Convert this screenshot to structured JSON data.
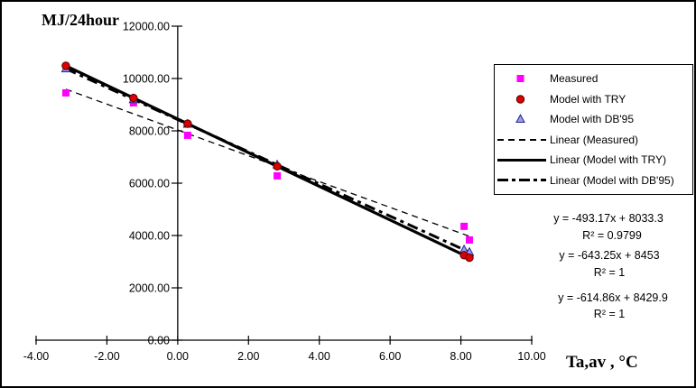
{
  "window": {
    "background": "#ffffff",
    "border_color": "#000000"
  },
  "chart_data": {
    "type": "scatter",
    "x_axis": {
      "label": "Ta,av , °C",
      "min": -4,
      "max": 10,
      "tick_step": 2,
      "tick_values": [
        -4,
        -2,
        0,
        2,
        4,
        6,
        8,
        10
      ],
      "tick_labels": [
        "-4.00",
        "-2.00",
        "0.00",
        "2.00",
        "4.00",
        "6.00",
        "8.00",
        "10.00"
      ]
    },
    "y_axis": {
      "label": "MJ/24hour",
      "min": 0,
      "max": 12000,
      "tick_step": 2000,
      "tick_values": [
        0,
        2000,
        4000,
        6000,
        8000,
        10000,
        12000
      ],
      "tick_labels": [
        "0.00",
        "2000.00",
        "4000.00",
        "6000.00",
        "8000.00",
        "10000.00",
        "12000.00"
      ]
    },
    "grid": "off",
    "legend_position": "right",
    "series": [
      {
        "name": "Measured",
        "marker": "square",
        "fill": "#ff00ff",
        "stroke": "#ff00ff",
        "points": [
          [
            -3.16,
            9450
          ],
          [
            -1.25,
            9070
          ],
          [
            0.28,
            7830
          ],
          [
            2.81,
            6280
          ],
          [
            8.09,
            4350
          ],
          [
            8.24,
            3830
          ]
        ]
      },
      {
        "name": "Model with TRY",
        "marker": "circle",
        "fill": "#dd0000",
        "stroke": "#550000",
        "points": [
          [
            -3.16,
            10486
          ],
          [
            -1.25,
            9257
          ],
          [
            0.28,
            8273
          ],
          [
            2.81,
            6645
          ],
          [
            8.09,
            3249
          ],
          [
            8.24,
            3153
          ]
        ]
      },
      {
        "name": "Model with DB'95",
        "marker": "triangle",
        "fill": "#9999ff",
        "stroke": "#26267f",
        "points": [
          [
            -3.16,
            10373
          ],
          [
            -1.25,
            9198
          ],
          [
            0.28,
            8258
          ],
          [
            2.81,
            6702
          ],
          [
            8.09,
            3456
          ],
          [
            8.24,
            3364
          ]
        ]
      }
    ],
    "trendlines": [
      {
        "name": "Linear (Measured)",
        "style": "dashed",
        "color": "#000000",
        "slope": -493.17,
        "intercept": 8033.3,
        "r2": 0.9799,
        "x_start": -3.16,
        "x_end": 8.24
      },
      {
        "name": "Linear (Model with TRY)",
        "style": "solid",
        "color": "#000000",
        "slope": -643.25,
        "intercept": 8453,
        "r2": 1,
        "x_start": -3.16,
        "x_end": 8.24
      },
      {
        "name": "Linear (Model with DB'95)",
        "style": "dashdot",
        "color": "#000000",
        "slope": -614.86,
        "intercept": 8429.9,
        "r2": 1,
        "x_start": -3.16,
        "x_end": 8.24
      }
    ],
    "legend": {
      "items": [
        {
          "label": "Measured",
          "key": "square"
        },
        {
          "label": "Model with TRY",
          "key": "circle"
        },
        {
          "label": "Model with DB'95",
          "key": "triangle"
        },
        {
          "label": "Linear (Measured)",
          "key": "dashed-line"
        },
        {
          "label": "Linear (Model with TRY)",
          "key": "solid-line"
        },
        {
          "label": "Linear (Model with DB'95)",
          "key": "dashdot-line"
        }
      ]
    },
    "equations": [
      {
        "series": "Measured",
        "equation": "y = -493.17x + 8033.3",
        "r2_label": "R² = 0.9799"
      },
      {
        "series": "Model with TRY",
        "equation": "y = -643.25x + 8453",
        "r2_label": "R² = 1"
      },
      {
        "series": "Model with DB'95",
        "equation": "y = -614.86x + 8429.9",
        "r2_label": "R² = 1"
      }
    ]
  }
}
